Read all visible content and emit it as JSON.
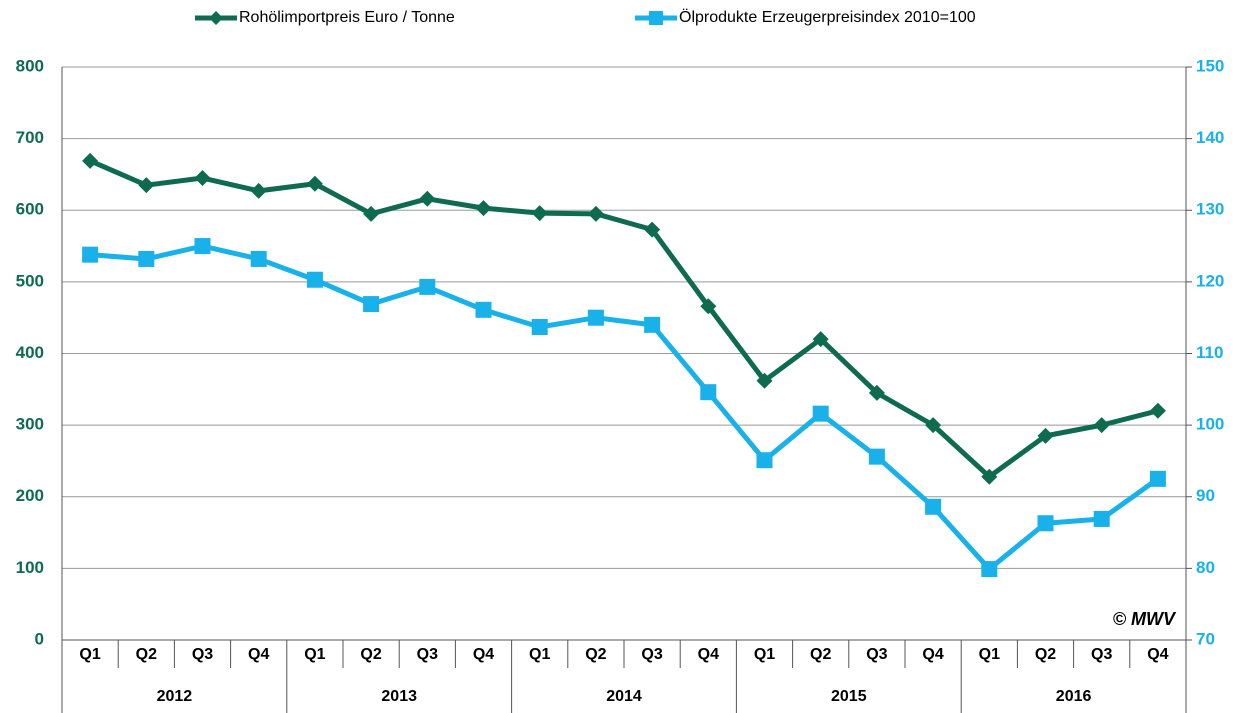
{
  "chart_data": {
    "type": "line",
    "categories": [
      "Q1",
      "Q2",
      "Q3",
      "Q4",
      "Q1",
      "Q2",
      "Q3",
      "Q4",
      "Q1",
      "Q2",
      "Q3",
      "Q4",
      "Q1",
      "Q2",
      "Q3",
      "Q4",
      "Q1",
      "Q2",
      "Q3",
      "Q4"
    ],
    "category_groups": [
      "2012",
      "2013",
      "2014",
      "2015",
      "2016"
    ],
    "series": [
      {
        "name": "Rohölimportpreis  Euro / Tonne",
        "color": "#0e6b50",
        "marker": "diamond",
        "values": [
          669,
          635,
          645,
          627,
          637,
          595,
          616,
          603,
          596,
          595,
          573,
          466,
          362,
          420,
          345,
          300,
          228,
          285,
          300,
          320
        ]
      },
      {
        "name": "Ölprodukte Erzeugerpreisindex 2010=100",
        "color": "#19b1ea",
        "marker": "square",
        "axis": "y2",
        "values": [
          123.8,
          123.2,
          125.0,
          123.2,
          120.3,
          116.9,
          119.3,
          116.1,
          113.7,
          115.0,
          114.0,
          104.6,
          95.1,
          101.6,
          95.6,
          88.6,
          79.9,
          86.3,
          86.9,
          92.5
        ]
      }
    ],
    "ylim": [
      0,
      800
    ],
    "yticks": [
      0,
      100,
      200,
      300,
      400,
      500,
      600,
      700,
      800
    ],
    "y2lim": [
      70,
      150
    ],
    "y2ticks": [
      70,
      80,
      90,
      100,
      110,
      120,
      130,
      140,
      150
    ],
    "grid": true,
    "legend": "top",
    "annotation": "© MWV"
  }
}
